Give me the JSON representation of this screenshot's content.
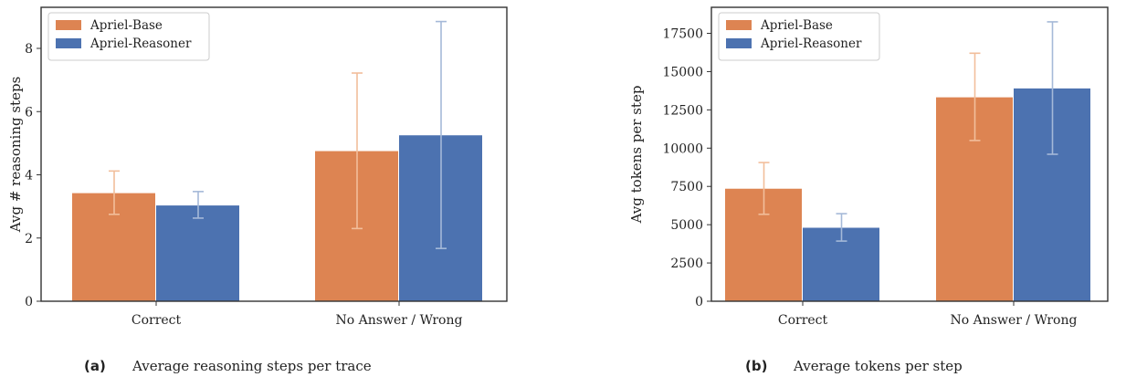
{
  "chart_data": [
    {
      "type": "bar",
      "categories": [
        "Correct",
        "No Answer / Wrong"
      ],
      "series": [
        {
          "name": "Apriel-Base",
          "values": [
            3.42,
            4.75
          ],
          "err_low": [
            2.75,
            2.3
          ],
          "err_high": [
            4.12,
            7.22
          ]
        },
        {
          "name": "Apriel-Reasoner",
          "values": [
            3.03,
            5.25
          ],
          "err_low": [
            2.63,
            1.67
          ],
          "err_high": [
            3.47,
            8.85
          ]
        }
      ],
      "ylabel": "Avg # reasoning steps",
      "ylim": [
        0,
        9.3
      ],
      "yticks": [
        0,
        2,
        4,
        6,
        8
      ],
      "legend": "top-left",
      "caption_tag": "(a)",
      "caption": "Average reasoning steps per trace"
    },
    {
      "type": "bar",
      "categories": [
        "Correct",
        "No Answer / Wrong"
      ],
      "series": [
        {
          "name": "Apriel-Base",
          "values": [
            7350,
            13320
          ],
          "err_low": [
            5680,
            10500
          ],
          "err_high": [
            9060,
            16200
          ]
        },
        {
          "name": "Apriel-Reasoner",
          "values": [
            4800,
            13900
          ],
          "err_low": [
            3930,
            9600
          ],
          "err_high": [
            5720,
            18250
          ]
        }
      ],
      "ylabel": "Avg tokens per step",
      "ylim": [
        0,
        19200
      ],
      "yticks": [
        0,
        2500,
        5000,
        7500,
        10000,
        12500,
        15000,
        17500
      ],
      "legend": "top-left",
      "caption_tag": "(b)",
      "caption": "Average tokens per step"
    }
  ],
  "colors": {
    "series": [
      "#DD8452",
      "#4C72B0"
    ],
    "err": [
      "#F2BE9B",
      "#A5B9D8"
    ],
    "axis": "#333333"
  }
}
